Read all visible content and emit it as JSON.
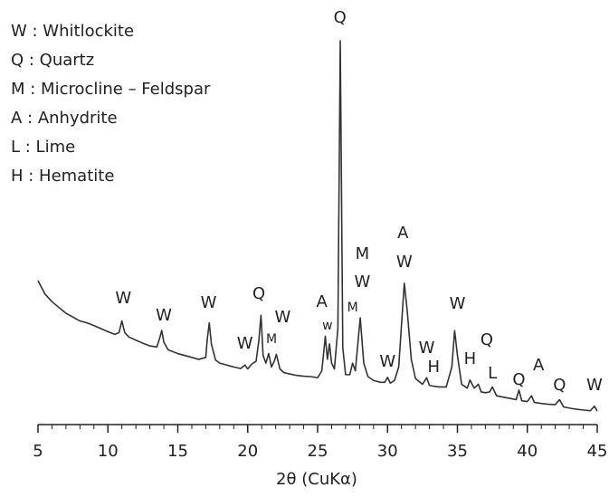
{
  "chart_data": {
    "type": "line",
    "legend": [
      "W : Whitlockite",
      "Q : Quartz",
      "M : Microcline – Feldspar",
      "A : Anhydrite",
      "L : Lime",
      "H : Hematite"
    ],
    "x_label": "2θ (CuKα)",
    "series": [
      {
        "color": "#333333",
        "x": [
          5,
          5.5,
          6,
          6.5,
          7,
          7.5,
          8,
          8.5,
          9,
          9.5,
          10,
          10.5,
          10.8,
          11,
          11.2,
          11.5,
          12,
          12.5,
          13,
          13.5,
          13.7,
          13.85,
          14,
          14.3,
          15,
          15.5,
          16,
          16.5,
          17,
          17.1,
          17.25,
          17.4,
          17.7,
          18,
          18.5,
          19,
          19.5,
          19.8,
          20,
          20.3,
          20.6,
          20.8,
          20.95,
          21.1,
          21.3,
          21.5,
          21.7,
          21.9,
          22.05,
          22.3,
          22.6,
          23,
          23.5,
          24,
          24.5,
          25,
          25.3,
          25.55,
          25.7,
          25.85,
          26,
          26.2,
          26.45,
          26.62,
          26.8,
          27,
          27.3,
          27.5,
          27.7,
          27.9,
          28.05,
          28.3,
          28.6,
          29,
          29.5,
          29.8,
          30,
          30.2,
          30.5,
          30.8,
          31,
          31.2,
          31.4,
          31.7,
          32,
          32.5,
          32.8,
          33,
          33.3,
          33.7,
          34.2,
          34.6,
          34.8,
          35,
          35.3,
          35.7,
          35.9,
          36.2,
          36.5,
          36.7,
          37,
          37.3,
          37.5,
          37.8,
          38.2,
          38.8,
          39.2,
          39.4,
          39.6,
          40,
          40.3,
          40.5,
          41,
          41.5,
          42,
          42.3,
          42.6,
          43,
          43.5,
          44,
          44.5,
          44.8,
          45
        ],
        "values": [
          37.5,
          34,
          32,
          30.5,
          29,
          28,
          27,
          26.5,
          25.8,
          25,
          24.2,
          23.5,
          24,
          27,
          24,
          22.8,
          22,
          21.2,
          20.5,
          20.2,
          22.5,
          24.5,
          21.5,
          19.5,
          18.5,
          18,
          17.5,
          17,
          17.5,
          22,
          26.5,
          21,
          16.8,
          16,
          15.5,
          15,
          14.6,
          15.5,
          14.5,
          15.8,
          16.5,
          22,
          28.5,
          18,
          16,
          18.5,
          15,
          16.5,
          18.3,
          14.5,
          13.5,
          13.2,
          12.8,
          12.6,
          12.5,
          12.2,
          14,
          23,
          17,
          21,
          16,
          14.5,
          25,
          100,
          20,
          13,
          13,
          16,
          14,
          22,
          27.8,
          16,
          12.5,
          11.5,
          11,
          11,
          12.3,
          10.8,
          11.5,
          15,
          26,
          36.8,
          30,
          17,
          12,
          10.5,
          12.2,
          10.2,
          10,
          9.8,
          9.8,
          15,
          24.5,
          18,
          10.5,
          9.5,
          11.6,
          9.5,
          10.5,
          8.5,
          8.3,
          8.5,
          9.8,
          7.5,
          7.2,
          6.8,
          6.5,
          9,
          6.2,
          6,
          7.5,
          5.8,
          5.5,
          5.3,
          5.2,
          6.5,
          4.6,
          4.3,
          4,
          3.8,
          3.6,
          4.8,
          3.5
        ]
      }
    ],
    "annotations": [
      {
        "text": "W",
        "x": 11.1,
        "y": 32.8
      },
      {
        "text": "W",
        "x": 14.0,
        "y": 28.3
      },
      {
        "text": "W",
        "x": 17.2,
        "y": 31.6
      },
      {
        "text": "Q",
        "x": 20.8,
        "y": 34
      },
      {
        "text": "W",
        "x": 22.5,
        "y": 27.8
      },
      {
        "text": "W",
        "x": 19.8,
        "y": 21
      },
      {
        "text": "M",
        "x": 21.7,
        "y": 22.2,
        "small": true
      },
      {
        "text": "A",
        "x": 25.3,
        "y": 31.8
      },
      {
        "text": "w",
        "x": 25.7,
        "y": 25.7,
        "small": true
      },
      {
        "text": "Q",
        "x": 26.6,
        "y": 105.9
      },
      {
        "text": "M",
        "x": 27.5,
        "y": 30.4,
        "small": true
      },
      {
        "text": "M",
        "x": 28.2,
        "y": 44.3
      },
      {
        "text": "W",
        "x": 28.2,
        "y": 37
      },
      {
        "text": "A",
        "x": 31.1,
        "y": 49.8
      },
      {
        "text": "W",
        "x": 31.2,
        "y": 42.2
      },
      {
        "text": "W",
        "x": 30.0,
        "y": 16.3
      },
      {
        "text": "W",
        "x": 32.8,
        "y": 19.8
      },
      {
        "text": "H",
        "x": 33.3,
        "y": 14.9
      },
      {
        "text": "W",
        "x": 35.0,
        "y": 31.4
      },
      {
        "text": "Q",
        "x": 37.1,
        "y": 21.9
      },
      {
        "text": "H",
        "x": 35.9,
        "y": 17
      },
      {
        "text": "L",
        "x": 37.5,
        "y": 13.2
      },
      {
        "text": "Q",
        "x": 39.4,
        "y": 11.6
      },
      {
        "text": "A",
        "x": 40.8,
        "y": 15.3
      },
      {
        "text": "Q",
        "x": 42.3,
        "y": 10.1
      },
      {
        "text": "W",
        "x": 44.8,
        "y": 10.1
      }
    ],
    "xlim": [
      5,
      45
    ],
    "ylim": [
      0,
      110
    ],
    "xticks": [
      5,
      10,
      15,
      20,
      25,
      30,
      35,
      40,
      45
    ],
    "xminorticks": [
      5,
      6,
      7,
      8,
      9,
      10,
      11,
      12,
      13,
      14,
      15,
      16,
      17,
      18,
      19,
      20,
      21,
      22,
      23,
      24,
      25,
      26,
      27,
      28,
      29,
      30,
      31,
      32,
      33,
      34,
      35,
      36,
      37,
      38,
      39,
      40,
      41,
      42,
      43,
      44,
      45
    ]
  }
}
